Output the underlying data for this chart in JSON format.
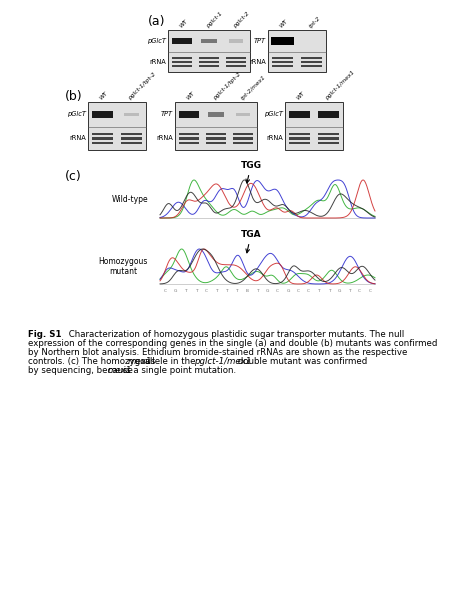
{
  "title_a": "(a)",
  "title_b": "(b)",
  "title_c": "(c)",
  "panel_a_left_labels_top": [
    "WT",
    "pglct-1",
    "pglct-2"
  ],
  "panel_a_left_probe": "pGlcT",
  "panel_a_left_rna": "rRNA",
  "panel_a_right_labels_top": [
    "WT",
    "tpt-2"
  ],
  "panel_a_right_probe": "TPT",
  "panel_a_right_rna": "rRNA",
  "panel_b1_labels_top": [
    "WT",
    "pglct-1/tpt-2"
  ],
  "panel_b1_probe": "pGlcT",
  "panel_b1_rna": "rRNA",
  "panel_b2_labels_top": [
    "WT",
    "pglct-1/tpt-2",
    "tpt-2/mex1"
  ],
  "panel_b2_probe": "TPT",
  "panel_b2_rna": "rRNA",
  "panel_b3_labels_top": [
    "WT",
    "pglct-1/mex1"
  ],
  "panel_b3_probe": "pGlcT",
  "panel_b3_rna": "rRNA",
  "wt_label": "Wild-type",
  "mut_label": "Homozygous\nmutant",
  "tgg_label": "TGG",
  "tga_label": "TGA",
  "caption_bold": "Fig. S1",
  "caption_normal": " Characterization of homozygous plastidic sugar transporter mutants. The null\nexpression of the corresponding genes in the single (a) and double (b) mutants was confirmed\nby Northern blot analysis. Ethidium bromide-stained rRNAs are shown as the respective\ncontrols. (c) The homozygous ",
  "caption_italic1": "mex1",
  "caption_mid": " allele in the ",
  "caption_italic2": "pglct-1/mex1",
  "caption_end": " double mutant was confirmed\nby sequencing, because ",
  "caption_italic3": "mex1",
  "caption_last": " is a single point mutation."
}
